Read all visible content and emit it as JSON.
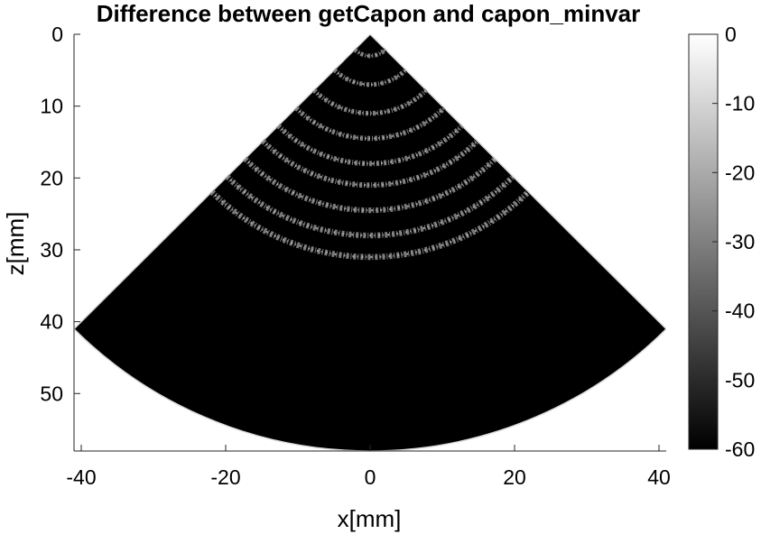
{
  "chart_data": {
    "type": "heatmap",
    "title": "Difference between getCapon and capon_minvar",
    "xlabel": "x[mm]",
    "ylabel": "z[mm]",
    "xlim": [
      -41,
      41
    ],
    "ylim": [
      0,
      58
    ],
    "y_reversed": true,
    "x_ticks": [
      -40,
      -20,
      0,
      20,
      40
    ],
    "y_ticks": [
      0,
      10,
      20,
      30,
      40,
      50
    ],
    "sector": {
      "apex": [
        0,
        0
      ],
      "depth_mm": 58,
      "half_angle_deg": 45
    },
    "rings_depth_mm": [
      3,
      7,
      11,
      14.5,
      18,
      21,
      24.5,
      28,
      31
    ],
    "colorbar": {
      "colormap": "gray",
      "clim": [
        -60,
        0
      ],
      "ticks": [
        0,
        -10,
        -20,
        -30,
        -40,
        -50,
        -60
      ]
    }
  }
}
